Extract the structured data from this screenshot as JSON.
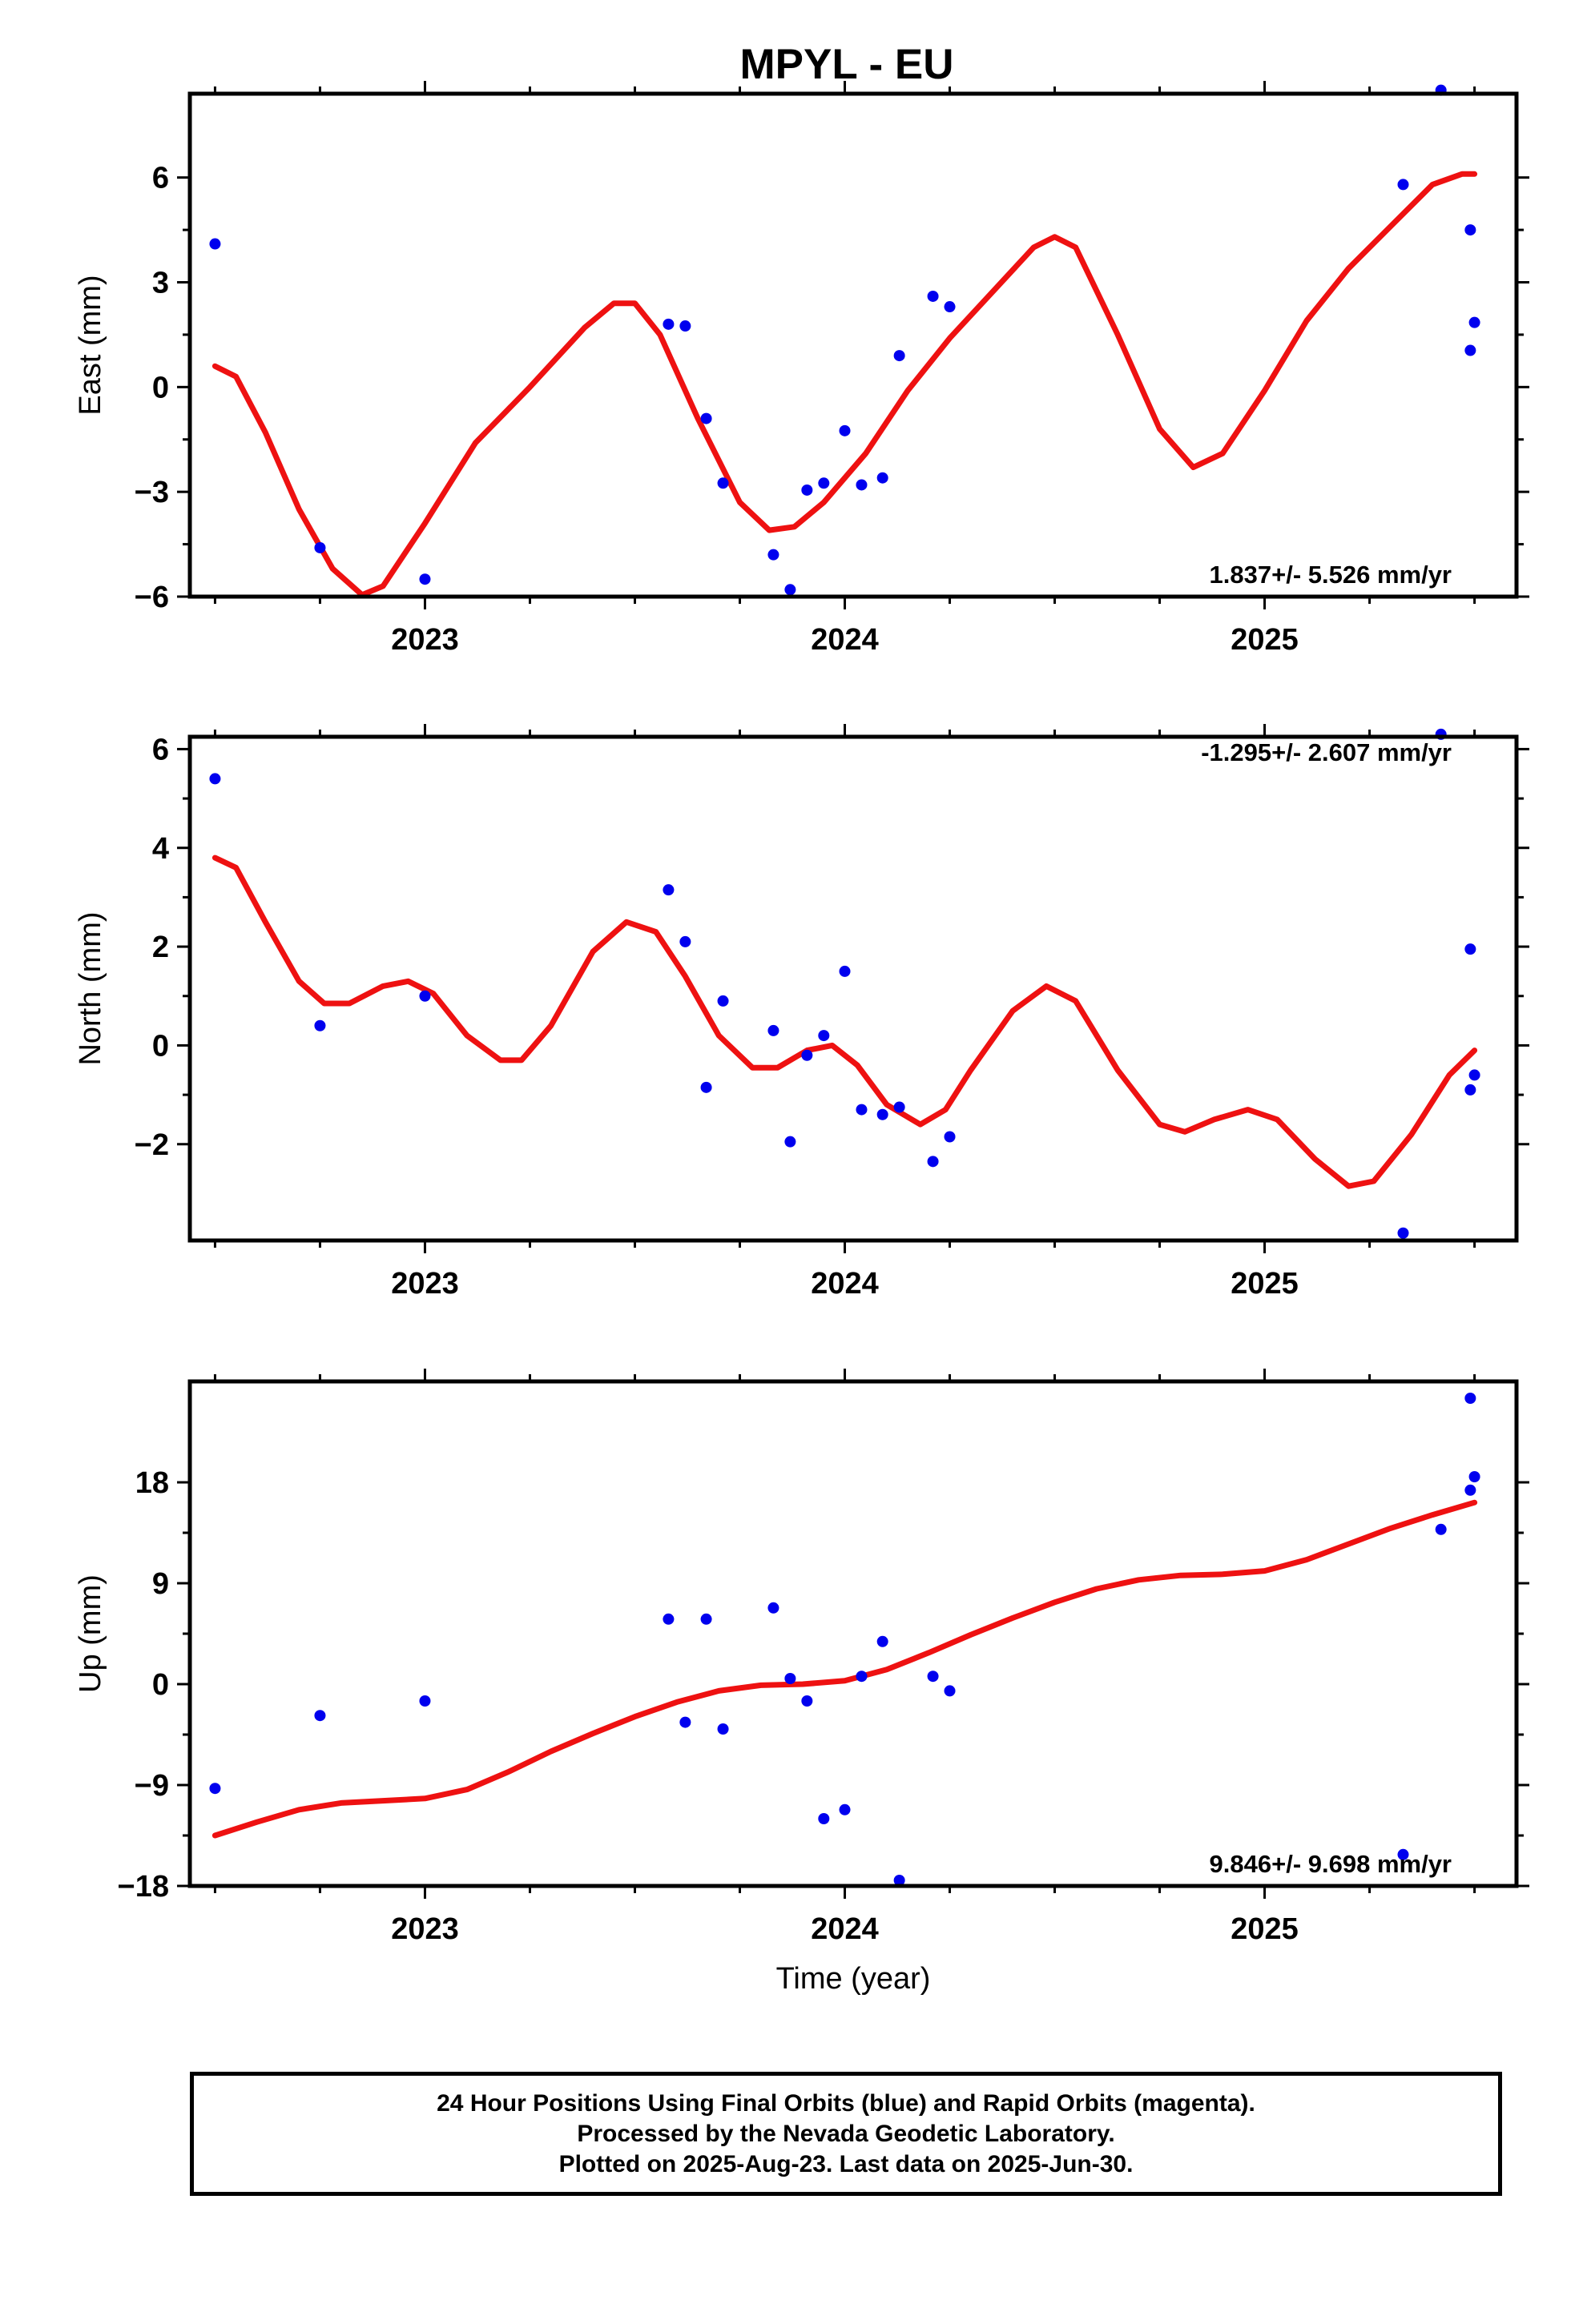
{
  "page_title": "MPYL - EU",
  "footer": {
    "line1": "24 Hour Positions Using Final Orbits (blue) and Rapid Orbits (magenta).",
    "line2": "Processed by the Nevada Geodetic Laboratory.",
    "line3": "Plotted on 2025-Aug-23. Last data on 2025-Jun-30."
  },
  "colors": {
    "points": "#0000ee",
    "fit": "#ee1111"
  },
  "chart_data": [
    {
      "type": "scatter",
      "title": "MPYL - EU",
      "ylabel": "East (mm)",
      "xlabel": "",
      "xlim": [
        2022.44,
        2025.6
      ],
      "ylim": [
        -6,
        8.4
      ],
      "yticks": [
        6,
        3,
        0,
        -3,
        -6
      ],
      "ytick_labels": [
        "6",
        "3",
        "0",
        "−3",
        "−6"
      ],
      "xticks": [
        2023,
        2024,
        2025
      ],
      "xtick_labels": [
        "2023",
        "2024",
        "2025"
      ],
      "rate_text": "1.837+/- 5.526 mm/yr",
      "rate_position": "bottom-right",
      "points": [
        {
          "x": 2022.5,
          "y": 4.1
        },
        {
          "x": 2022.75,
          "y": -4.6
        },
        {
          "x": 2023.0,
          "y": -5.5
        },
        {
          "x": 2023.58,
          "y": 1.8
        },
        {
          "x": 2023.62,
          "y": 1.75
        },
        {
          "x": 2023.67,
          "y": -0.9
        },
        {
          "x": 2023.71,
          "y": -2.75
        },
        {
          "x": 2023.83,
          "y": -4.8
        },
        {
          "x": 2023.87,
          "y": -5.8
        },
        {
          "x": 2023.91,
          "y": -2.95
        },
        {
          "x": 2023.95,
          "y": -2.75
        },
        {
          "x": 2024.0,
          "y": -1.25
        },
        {
          "x": 2024.04,
          "y": -2.8
        },
        {
          "x": 2024.09,
          "y": -2.6
        },
        {
          "x": 2024.13,
          "y": 0.9
        },
        {
          "x": 2024.21,
          "y": 2.6
        },
        {
          "x": 2024.25,
          "y": 2.3
        },
        {
          "x": 2025.33,
          "y": 5.8
        },
        {
          "x": 2025.42,
          "y": 8.5
        },
        {
          "x": 2025.49,
          "y": 4.5
        },
        {
          "x": 2025.5,
          "y": 1.85
        },
        {
          "x": 2025.49,
          "y": 1.05
        }
      ],
      "fit": [
        [
          2022.5,
          0.6
        ],
        [
          2022.55,
          0.3
        ],
        [
          2022.62,
          -1.3
        ],
        [
          2022.7,
          -3.5
        ],
        [
          2022.78,
          -5.2
        ],
        [
          2022.85,
          -5.95
        ],
        [
          2022.9,
          -5.7
        ],
        [
          2023.0,
          -3.9
        ],
        [
          2023.12,
          -1.6
        ],
        [
          2023.25,
          0.0
        ],
        [
          2023.38,
          1.7
        ],
        [
          2023.45,
          2.4
        ],
        [
          2023.5,
          2.4
        ],
        [
          2023.56,
          1.5
        ],
        [
          2023.65,
          -0.9
        ],
        [
          2023.75,
          -3.3
        ],
        [
          2023.82,
          -4.1
        ],
        [
          2023.88,
          -4.0
        ],
        [
          2023.95,
          -3.3
        ],
        [
          2024.05,
          -1.9
        ],
        [
          2024.15,
          -0.1
        ],
        [
          2024.25,
          1.4
        ],
        [
          2024.35,
          2.7
        ],
        [
          2024.45,
          4.0
        ],
        [
          2024.5,
          4.3
        ],
        [
          2024.55,
          4.0
        ],
        [
          2024.65,
          1.5
        ],
        [
          2024.75,
          -1.2
        ],
        [
          2024.83,
          -2.3
        ],
        [
          2024.9,
          -1.9
        ],
        [
          2025.0,
          -0.1
        ],
        [
          2025.1,
          1.9
        ],
        [
          2025.2,
          3.4
        ],
        [
          2025.3,
          4.6
        ],
        [
          2025.4,
          5.8
        ],
        [
          2025.47,
          6.1
        ],
        [
          2025.5,
          6.1
        ]
      ]
    },
    {
      "type": "scatter",
      "ylabel": "North (mm)",
      "xlabel": "",
      "xlim": [
        2022.44,
        2025.6
      ],
      "ylim": [
        -3.95,
        6.25
      ],
      "yticks": [
        6,
        4,
        2,
        0,
        -2
      ],
      "ytick_labels": [
        "6",
        "4",
        "2",
        "0",
        "−2"
      ],
      "xticks": [
        2023,
        2024,
        2025
      ],
      "xtick_labels": [
        "2023",
        "2024",
        "2025"
      ],
      "rate_text": "-1.295+/- 2.607 mm/yr",
      "rate_position": "top-right",
      "points": [
        {
          "x": 2022.5,
          "y": 5.4
        },
        {
          "x": 2022.75,
          "y": 0.4
        },
        {
          "x": 2023.0,
          "y": 1.0
        },
        {
          "x": 2023.58,
          "y": 3.15
        },
        {
          "x": 2023.62,
          "y": 2.1
        },
        {
          "x": 2023.67,
          "y": -0.85
        },
        {
          "x": 2023.71,
          "y": 0.9
        },
        {
          "x": 2023.83,
          "y": 0.3
        },
        {
          "x": 2023.87,
          "y": -1.95
        },
        {
          "x": 2023.91,
          "y": -0.2
        },
        {
          "x": 2023.95,
          "y": 0.2
        },
        {
          "x": 2024.0,
          "y": 1.5
        },
        {
          "x": 2024.04,
          "y": -1.3
        },
        {
          "x": 2024.09,
          "y": -1.4
        },
        {
          "x": 2024.13,
          "y": -1.25
        },
        {
          "x": 2024.21,
          "y": -2.35
        },
        {
          "x": 2024.25,
          "y": -1.85
        },
        {
          "x": 2025.33,
          "y": -3.8
        },
        {
          "x": 2025.42,
          "y": 6.3
        },
        {
          "x": 2025.49,
          "y": 1.95
        },
        {
          "x": 2025.5,
          "y": -0.6
        },
        {
          "x": 2025.49,
          "y": -0.9
        }
      ],
      "fit": [
        [
          2022.5,
          3.8
        ],
        [
          2022.55,
          3.6
        ],
        [
          2022.62,
          2.5
        ],
        [
          2022.7,
          1.3
        ],
        [
          2022.76,
          0.85
        ],
        [
          2022.82,
          0.85
        ],
        [
          2022.9,
          1.2
        ],
        [
          2022.96,
          1.3
        ],
        [
          2023.02,
          1.05
        ],
        [
          2023.1,
          0.2
        ],
        [
          2023.18,
          -0.3
        ],
        [
          2023.23,
          -0.3
        ],
        [
          2023.3,
          0.4
        ],
        [
          2023.4,
          1.9
        ],
        [
          2023.48,
          2.5
        ],
        [
          2023.55,
          2.3
        ],
        [
          2023.62,
          1.4
        ],
        [
          2023.7,
          0.2
        ],
        [
          2023.78,
          -0.45
        ],
        [
          2023.84,
          -0.45
        ],
        [
          2023.91,
          -0.1
        ],
        [
          2023.97,
          0.0
        ],
        [
          2024.03,
          -0.4
        ],
        [
          2024.1,
          -1.2
        ],
        [
          2024.18,
          -1.6
        ],
        [
          2024.24,
          -1.3
        ],
        [
          2024.3,
          -0.5
        ],
        [
          2024.4,
          0.7
        ],
        [
          2024.48,
          1.2
        ],
        [
          2024.55,
          0.9
        ],
        [
          2024.65,
          -0.5
        ],
        [
          2024.75,
          -1.6
        ],
        [
          2024.81,
          -1.75
        ],
        [
          2024.88,
          -1.5
        ],
        [
          2024.96,
          -1.3
        ],
        [
          2025.03,
          -1.5
        ],
        [
          2025.12,
          -2.3
        ],
        [
          2025.2,
          -2.85
        ],
        [
          2025.26,
          -2.75
        ],
        [
          2025.35,
          -1.8
        ],
        [
          2025.44,
          -0.6
        ],
        [
          2025.5,
          -0.1
        ]
      ]
    },
    {
      "type": "scatter",
      "ylabel": "Up (mm)",
      "xlabel": "Time (year)",
      "xlim": [
        2022.44,
        2025.6
      ],
      "ylim": [
        -18,
        27
      ],
      "yticks": [
        18,
        9,
        0,
        -9,
        -18
      ],
      "ytick_labels": [
        "18",
        "9",
        "0",
        "−9",
        "−18"
      ],
      "xticks": [
        2023,
        2024,
        2025
      ],
      "xtick_labels": [
        "2023",
        "2024",
        "2025"
      ],
      "rate_text": "9.846+/- 9.698 mm/yr",
      "rate_position": "bottom-right",
      "points": [
        {
          "x": 2022.5,
          "y": -9.3
        },
        {
          "x": 2022.75,
          "y": -2.8
        },
        {
          "x": 2023.0,
          "y": -1.5
        },
        {
          "x": 2023.58,
          "y": 5.8
        },
        {
          "x": 2023.62,
          "y": -3.4
        },
        {
          "x": 2023.67,
          "y": 5.8
        },
        {
          "x": 2023.71,
          "y": -4.0
        },
        {
          "x": 2023.83,
          "y": 6.8
        },
        {
          "x": 2023.87,
          "y": 0.5
        },
        {
          "x": 2023.91,
          "y": -1.5
        },
        {
          "x": 2023.95,
          "y": -12.0
        },
        {
          "x": 2024.0,
          "y": -11.2
        },
        {
          "x": 2024.04,
          "y": 0.7
        },
        {
          "x": 2024.09,
          "y": 3.8
        },
        {
          "x": 2024.13,
          "y": -17.5
        },
        {
          "x": 2024.21,
          "y": 0.7
        },
        {
          "x": 2024.25,
          "y": -0.6
        },
        {
          "x": 2025.33,
          "y": -15.2
        },
        {
          "x": 2025.42,
          "y": 13.8
        },
        {
          "x": 2025.49,
          "y": 25.5
        },
        {
          "x": 2025.5,
          "y": 18.5
        },
        {
          "x": 2025.49,
          "y": 17.3
        }
      ],
      "fit": [
        [
          2022.5,
          -13.5
        ],
        [
          2022.6,
          -12.3
        ],
        [
          2022.7,
          -11.2
        ],
        [
          2022.8,
          -10.6
        ],
        [
          2022.9,
          -10.4
        ],
        [
          2023.0,
          -10.2
        ],
        [
          2023.1,
          -9.4
        ],
        [
          2023.2,
          -7.8
        ],
        [
          2023.3,
          -6.0
        ],
        [
          2023.4,
          -4.4
        ],
        [
          2023.5,
          -2.9
        ],
        [
          2023.6,
          -1.6
        ],
        [
          2023.7,
          -0.6
        ],
        [
          2023.8,
          -0.1
        ],
        [
          2023.9,
          0.0
        ],
        [
          2024.0,
          0.3
        ],
        [
          2024.1,
          1.3
        ],
        [
          2024.2,
          2.8
        ],
        [
          2024.3,
          4.4
        ],
        [
          2024.4,
          5.9
        ],
        [
          2024.5,
          7.3
        ],
        [
          2024.6,
          8.5
        ],
        [
          2024.7,
          9.3
        ],
        [
          2024.8,
          9.7
        ],
        [
          2024.9,
          9.8
        ],
        [
          2025.0,
          10.1
        ],
        [
          2025.1,
          11.1
        ],
        [
          2025.2,
          12.5
        ],
        [
          2025.3,
          13.9
        ],
        [
          2025.4,
          15.1
        ],
        [
          2025.5,
          16.2
        ]
      ]
    }
  ]
}
